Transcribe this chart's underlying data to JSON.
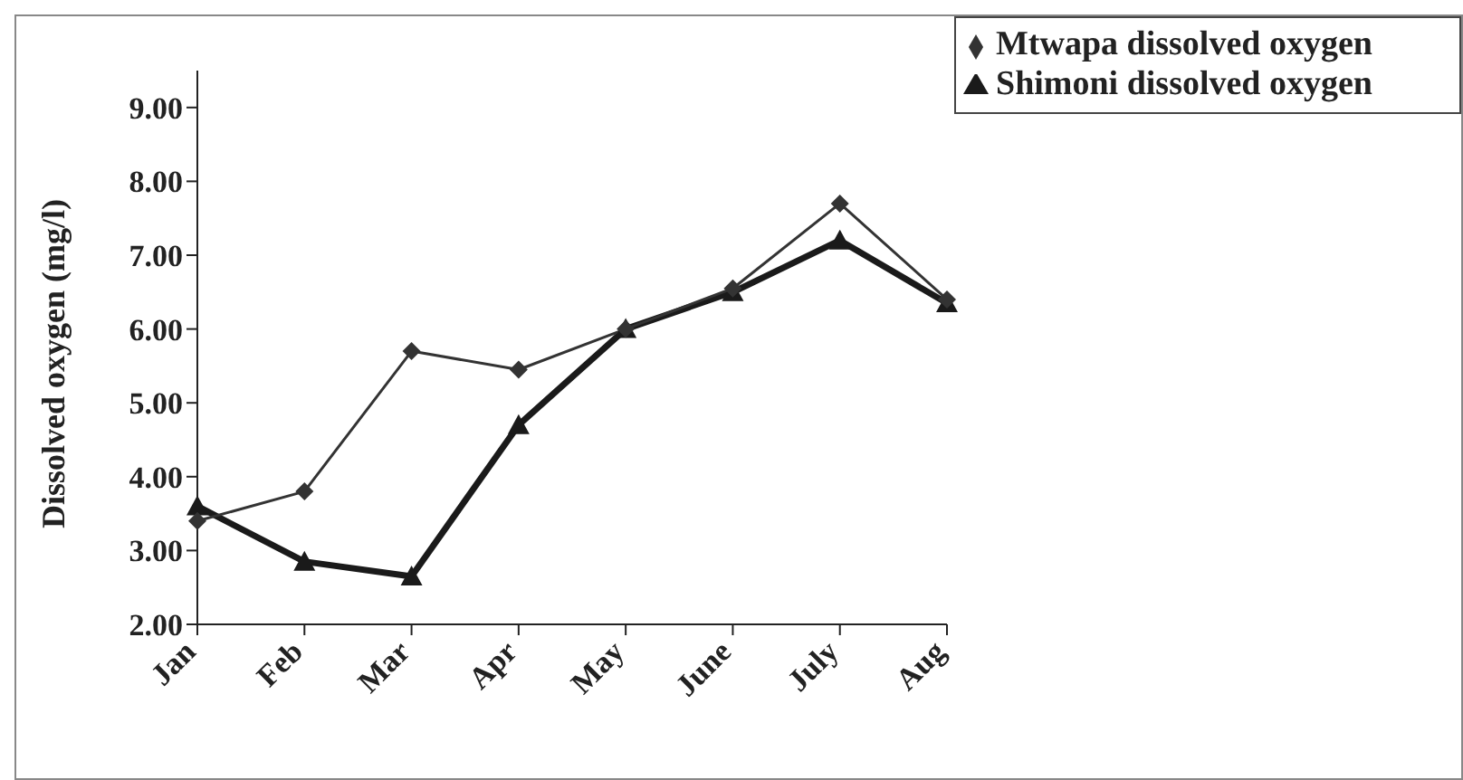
{
  "chart_data": {
    "type": "line",
    "ylabel": "Dissolved oxygen (mg/l)",
    "categories": [
      "Jan",
      "Feb",
      "Mar",
      "Apr",
      "May",
      "June",
      "July",
      "Aug"
    ],
    "series": [
      {
        "name": "Mtwapa dissolved oxygen",
        "color": "#333333",
        "marker": "diamond",
        "values": [
          3.4,
          3.8,
          5.7,
          5.45,
          6.0,
          6.55,
          7.7,
          6.4
        ]
      },
      {
        "name": "Shimoni dissolved oxygen",
        "color": "#1a1a1a",
        "marker": "triangle",
        "values": [
          3.6,
          2.85,
          2.65,
          4.7,
          6.0,
          6.5,
          7.2,
          6.35
        ]
      }
    ],
    "ylim": [
      2,
      9.5
    ],
    "yticks": [
      {
        "value": 2,
        "label": "2.00"
      },
      {
        "value": 3,
        "label": "3.00"
      },
      {
        "value": 4,
        "label": "4.00"
      },
      {
        "value": 5,
        "label": "5.00"
      },
      {
        "value": 6,
        "label": "6.00"
      },
      {
        "value": 7,
        "label": "7.00"
      },
      {
        "value": 8,
        "label": "8.00"
      },
      {
        "value": 9,
        "label": "9.00"
      }
    ],
    "grid": false,
    "legend": "top right"
  }
}
